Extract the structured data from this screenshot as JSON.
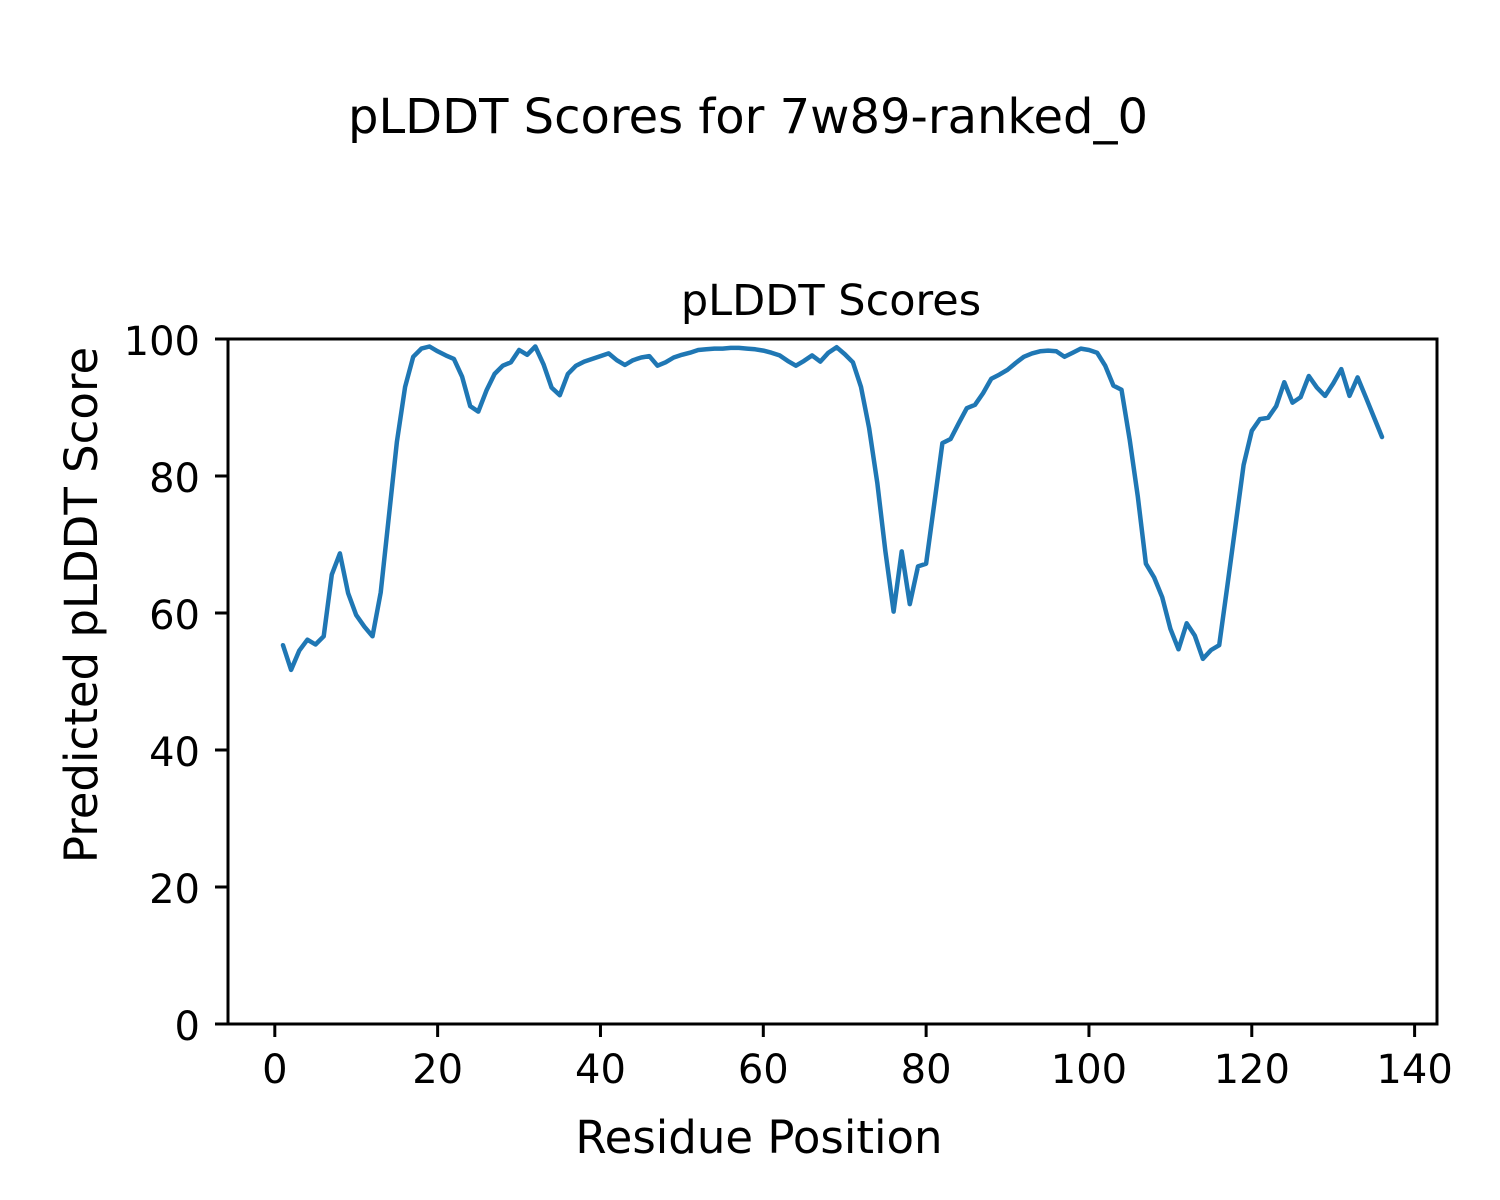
{
  "figure": {
    "suptitle": "pLDDT Scores for 7w89-ranked_0",
    "background": "#ffffff",
    "text_color": "#000000"
  },
  "chart_data": {
    "type": "line",
    "title": "pLDDT Scores",
    "xlabel": "Residue Position",
    "ylabel": "Predicted pLDDT Score",
    "xlim": [
      -5.75,
      142.75
    ],
    "ylim": [
      0,
      100
    ],
    "xticks": [
      0,
      20,
      40,
      60,
      80,
      100,
      120,
      140
    ],
    "yticks": [
      0,
      20,
      40,
      60,
      80,
      100
    ],
    "grid": false,
    "legend_position": "none",
    "line_color": "#1f77b4",
    "line_width": 4.5,
    "x_start": 1,
    "x_step": 1,
    "series": [
      {
        "name": "pLDDT",
        "values": [
          55.3,
          51.7,
          54.5,
          56.1,
          55.4,
          56.6,
          65.6,
          68.7,
          62.9,
          59.7,
          58.0,
          56.6,
          63.0,
          74.0,
          85.0,
          93.0,
          97.4,
          98.6,
          98.9,
          98.2,
          97.6,
          97.1,
          94.5,
          90.2,
          89.4,
          92.5,
          94.9,
          96.1,
          96.6,
          98.4,
          97.7,
          98.9,
          96.3,
          92.9,
          91.8,
          94.9,
          96.1,
          96.7,
          97.1,
          97.5,
          97.9,
          96.9,
          96.2,
          96.9,
          97.3,
          97.5,
          96.1,
          96.6,
          97.3,
          97.7,
          98.0,
          98.4,
          98.5,
          98.6,
          98.6,
          98.7,
          98.7,
          98.6,
          98.5,
          98.3,
          98.0,
          97.6,
          96.8,
          96.1,
          96.8,
          97.6,
          96.7,
          98.0,
          98.8,
          97.8,
          96.6,
          93.0,
          87.0,
          79.0,
          69.0,
          60.2,
          69.0,
          61.3,
          66.8,
          67.2,
          76.0,
          84.8,
          85.4,
          87.7,
          89.9,
          90.4,
          92.1,
          94.2,
          94.8,
          95.5,
          96.5,
          97.4,
          97.9,
          98.2,
          98.3,
          98.2,
          97.4,
          98.0,
          98.6,
          98.4,
          98.0,
          96.1,
          93.2,
          92.6,
          85.3,
          77.0,
          67.2,
          65.2,
          62.3,
          57.7,
          54.7,
          58.5,
          56.7,
          53.3,
          54.6,
          55.3,
          64.0,
          72.8,
          81.6,
          86.6,
          88.3,
          88.5,
          90.2,
          93.7,
          90.7,
          91.5,
          94.6,
          92.9,
          91.7,
          93.5,
          95.6,
          91.7,
          94.4,
          91.5,
          88.6,
          85.7
        ]
      }
    ]
  }
}
